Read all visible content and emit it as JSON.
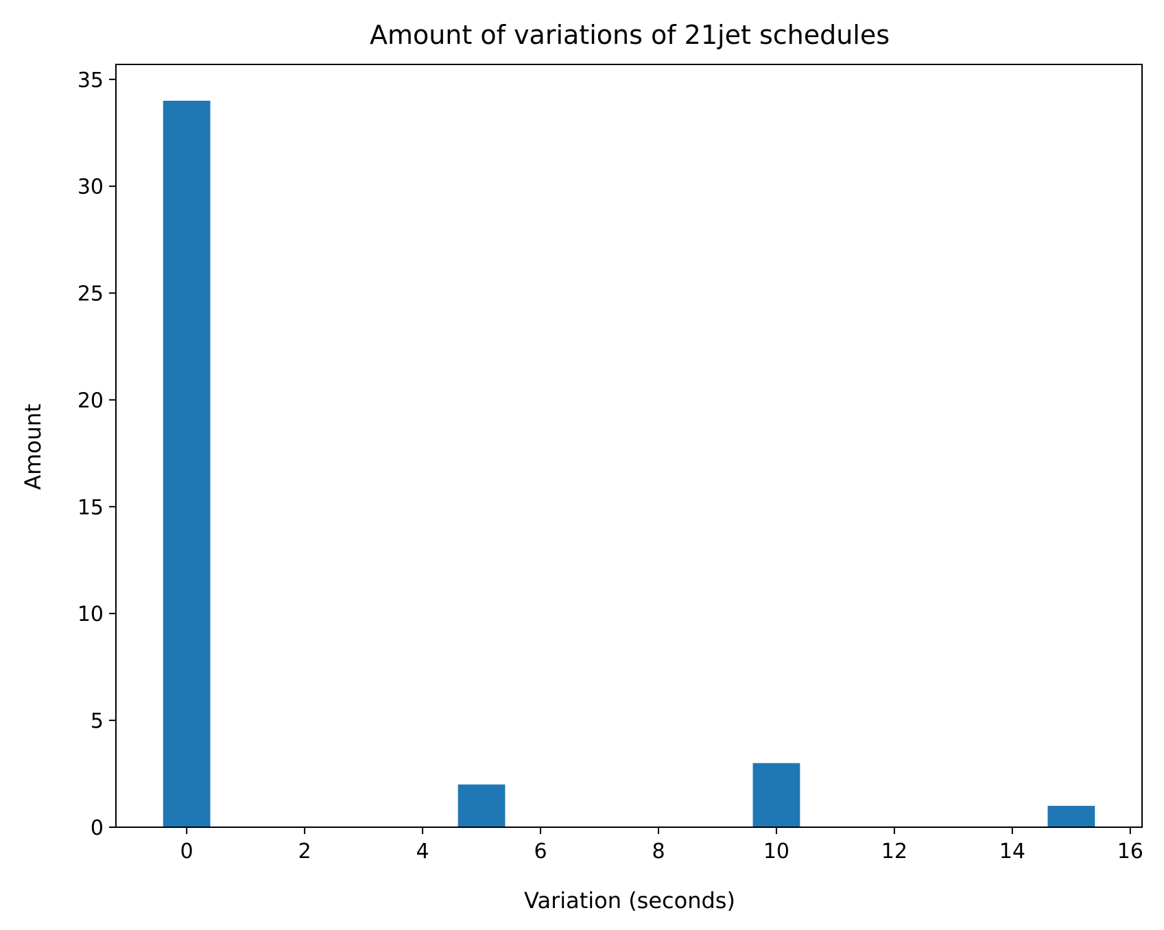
{
  "chart_data": {
    "type": "bar",
    "title": "Amount of variations of 21jet schedules",
    "xlabel": "Variation (seconds)",
    "ylabel": "Amount",
    "x": [
      0,
      5,
      10,
      15
    ],
    "values": [
      34,
      2,
      3,
      1
    ],
    "bar_width": 0.8,
    "xlim": [
      -1.2,
      16.2
    ],
    "ylim": [
      0,
      35.7
    ],
    "xticks": [
      0,
      2,
      4,
      6,
      8,
      10,
      12,
      14,
      16
    ],
    "yticks": [
      0,
      5,
      10,
      15,
      20,
      25,
      30,
      35
    ],
    "grid": false,
    "legend": "none",
    "bar_color": "#1f77b4"
  }
}
